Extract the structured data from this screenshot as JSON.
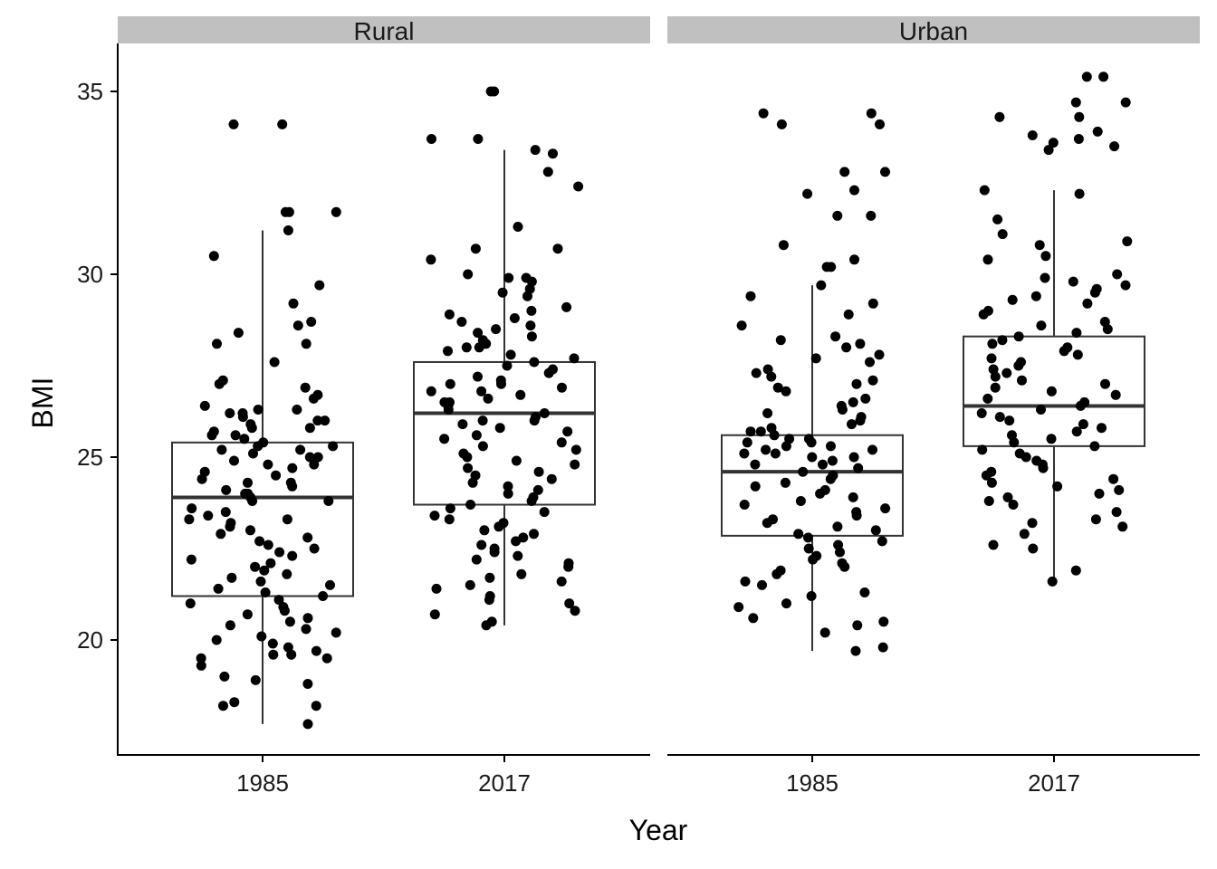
{
  "chart_data": {
    "type": "boxplot",
    "facet_variable": "area",
    "facets": [
      "Rural",
      "Urban"
    ],
    "categories": [
      "1985",
      "2017"
    ],
    "xlabel": "Year",
    "ylabel": "BMI",
    "ylim": [
      17.3,
      36.4
    ],
    "yticks": [
      20,
      25,
      30,
      35
    ],
    "grid": false,
    "legend": "none",
    "jitter": true,
    "colors": {
      "points": "#000000",
      "box_line": "#333333",
      "strip_bg": "#c0c0c0",
      "axis": "#000000"
    },
    "boxes": [
      {
        "facet": "Rural",
        "year": "1985",
        "q1": 21.2,
        "median": 23.9,
        "q3": 25.4,
        "lower_whisker": 17.7,
        "upper_whisker": 31.2
      },
      {
        "facet": "Rural",
        "year": "2017",
        "q1": 23.7,
        "median": 26.2,
        "q3": 27.6,
        "lower_whisker": 20.4,
        "upper_whisker": 33.4
      },
      {
        "facet": "Urban",
        "year": "1985",
        "q1": 22.85,
        "median": 24.6,
        "q3": 25.6,
        "lower_whisker": 19.7,
        "upper_whisker": 29.7
      },
      {
        "facet": "Urban",
        "year": "2017",
        "q1": 25.3,
        "median": 26.4,
        "q3": 28.3,
        "lower_whisker": 21.6,
        "upper_whisker": 32.3
      }
    ],
    "points": [
      {
        "facet": "Rural",
        "year": "1985",
        "bmi": [
          31.7,
          34.1,
          34.1,
          31.7,
          31.7,
          31.2,
          30.5,
          29.7,
          29.2,
          28.7,
          28.6,
          28.4,
          28.1,
          28.1,
          27.6,
          27.1,
          27.0,
          26.9,
          26.7,
          26.6,
          26.4,
          26.3,
          26.3,
          26.2,
          26.2,
          26.1,
          26.0,
          26.0,
          25.9,
          25.8,
          25.8,
          25.7,
          25.6,
          25.6,
          25.5,
          25.4,
          25.3,
          25.3,
          25.2,
          25.2,
          25.1,
          25.0,
          25.0,
          24.9,
          24.8,
          24.8,
          24.7,
          24.6,
          24.5,
          24.4,
          24.3,
          24.3,
          24.2,
          24.1,
          24.0,
          24.0,
          23.9,
          23.8,
          23.8,
          23.6,
          23.5,
          23.4,
          23.3,
          23.3,
          23.2,
          23.1,
          23.0,
          22.9,
          22.8,
          22.7,
          22.6,
          22.5,
          22.4,
          22.3,
          22.2,
          22.1,
          22.0,
          21.9,
          21.8,
          21.7,
          21.6,
          21.5,
          21.4,
          21.3,
          21.2,
          21.1,
          21.0,
          20.9,
          20.8,
          20.7,
          20.6,
          20.5,
          20.4,
          20.3,
          20.2,
          20.1,
          20.0,
          19.9,
          19.8,
          19.7,
          19.6,
          19.6,
          19.5,
          19.5,
          19.3,
          19.0,
          18.9,
          18.8,
          18.3,
          18.2,
          18.2,
          17.7
        ]
      },
      {
        "facet": "Rural",
        "year": "2017",
        "bmi": [
          35.0,
          35.0,
          33.7,
          33.7,
          33.4,
          33.3,
          32.8,
          32.4,
          31.3,
          30.7,
          30.7,
          30.4,
          30.0,
          29.9,
          29.9,
          29.8,
          29.6,
          29.5,
          29.4,
          29.1,
          29.0,
          28.9,
          28.8,
          28.7,
          28.6,
          28.5,
          28.4,
          28.3,
          28.2,
          28.1,
          28.0,
          28.0,
          27.9,
          27.8,
          27.7,
          27.6,
          27.5,
          27.4,
          27.3,
          27.2,
          27.1,
          27.0,
          27.0,
          26.9,
          26.8,
          26.8,
          26.7,
          26.6,
          26.5,
          26.5,
          26.4,
          26.3,
          26.2,
          26.1,
          26.0,
          26.0,
          25.9,
          25.8,
          25.7,
          25.6,
          25.5,
          25.4,
          25.3,
          25.2,
          25.1,
          25.0,
          24.9,
          24.8,
          24.7,
          24.6,
          24.5,
          24.4,
          24.3,
          24.2,
          24.1,
          24.0,
          23.9,
          23.8,
          23.7,
          23.6,
          23.5,
          23.4,
          23.3,
          23.2,
          23.1,
          23.0,
          22.9,
          22.8,
          22.7,
          22.6,
          22.5,
          22.4,
          22.3,
          22.2,
          22.1,
          22.0,
          21.8,
          21.7,
          21.6,
          21.5,
          21.4,
          21.2,
          21.1,
          21.0,
          20.8,
          20.7,
          20.5,
          20.4
        ]
      },
      {
        "facet": "Urban",
        "year": "1985",
        "bmi": [
          34.4,
          34.4,
          34.1,
          34.1,
          32.8,
          32.8,
          32.3,
          32.2,
          31.6,
          31.6,
          30.8,
          30.4,
          30.2,
          30.2,
          29.7,
          29.4,
          29.2,
          28.9,
          28.6,
          28.3,
          28.2,
          28.1,
          28.0,
          27.8,
          27.7,
          27.6,
          27.4,
          27.3,
          27.2,
          27.1,
          27.0,
          26.9,
          26.8,
          26.6,
          26.5,
          26.4,
          26.3,
          26.2,
          26.1,
          26.0,
          25.9,
          25.8,
          25.7,
          25.7,
          25.6,
          25.5,
          25.5,
          25.4,
          25.4,
          25.3,
          25.3,
          25.2,
          25.2,
          25.1,
          25.1,
          25.0,
          25.0,
          24.9,
          24.8,
          24.8,
          24.7,
          24.6,
          24.5,
          24.4,
          24.3,
          24.2,
          24.1,
          24.0,
          23.9,
          23.8,
          23.7,
          23.6,
          23.5,
          23.4,
          23.3,
          23.2,
          23.1,
          23.0,
          22.9,
          22.8,
          22.7,
          22.6,
          22.5,
          22.4,
          22.3,
          22.2,
          22.1,
          22.0,
          21.9,
          21.8,
          21.6,
          21.5,
          21.3,
          21.2,
          21.0,
          20.9,
          20.6,
          20.5,
          20.4,
          20.2,
          19.8,
          19.7
        ]
      },
      {
        "facet": "Urban",
        "year": "2017",
        "bmi": [
          35.4,
          35.4,
          34.7,
          34.7,
          34.3,
          34.3,
          33.9,
          33.8,
          33.7,
          33.6,
          33.5,
          33.4,
          32.3,
          32.2,
          31.5,
          31.1,
          30.9,
          30.8,
          30.5,
          30.4,
          30.0,
          29.9,
          29.8,
          29.7,
          29.6,
          29.5,
          29.4,
          29.3,
          29.2,
          29.0,
          28.9,
          28.7,
          28.6,
          28.5,
          28.4,
          28.3,
          28.2,
          28.1,
          28.0,
          27.9,
          27.8,
          27.7,
          27.6,
          27.5,
          27.4,
          27.3,
          27.2,
          27.1,
          27.0,
          26.9,
          26.8,
          26.7,
          26.6,
          26.5,
          26.4,
          26.3,
          26.2,
          26.1,
          26.0,
          25.9,
          25.8,
          25.7,
          25.6,
          25.5,
          25.4,
          25.3,
          25.2,
          25.1,
          25.0,
          24.9,
          24.8,
          24.7,
          24.6,
          24.5,
          24.4,
          24.3,
          24.2,
          24.1,
          24.0,
          23.9,
          23.8,
          23.7,
          23.5,
          23.3,
          23.2,
          23.1,
          22.9,
          22.6,
          22.5,
          21.9,
          21.6
        ]
      }
    ]
  }
}
